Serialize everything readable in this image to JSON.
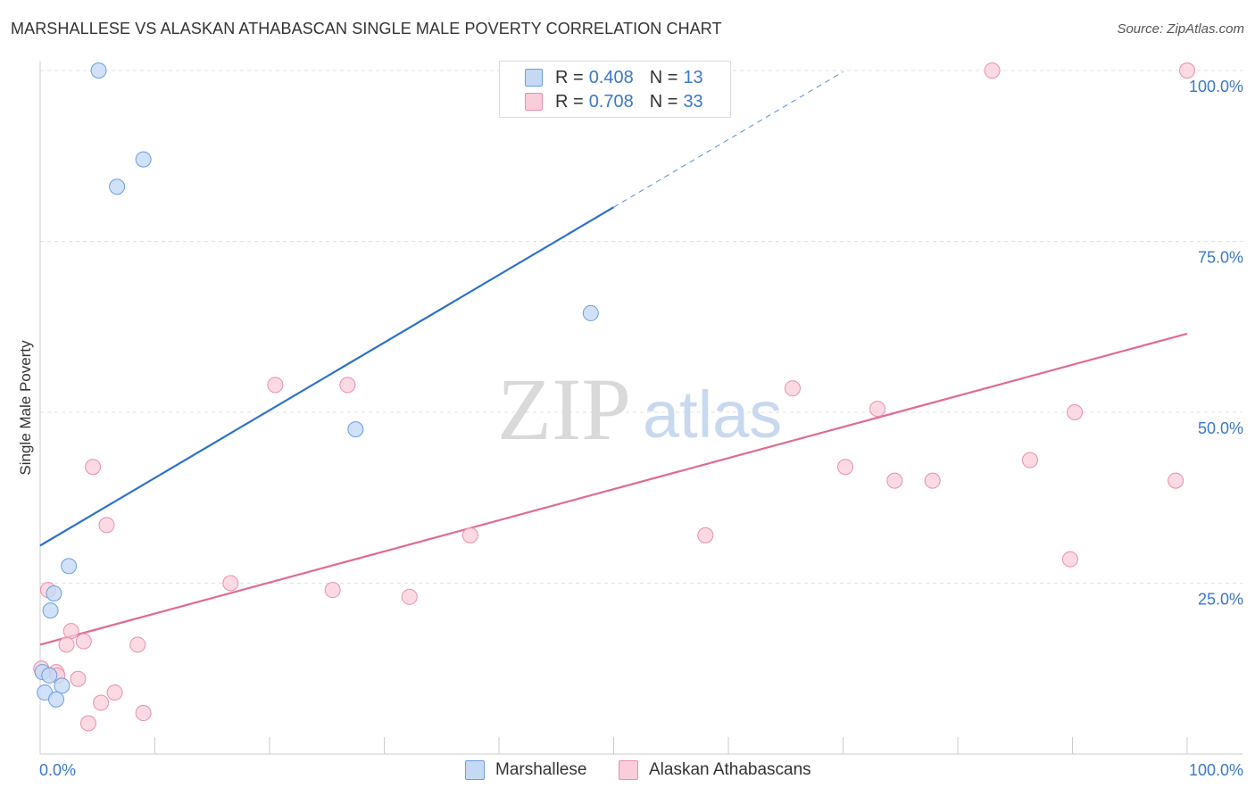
{
  "title": "MARSHALLESE VS ALASKAN ATHABASCAN SINGLE MALE POVERTY CORRELATION CHART",
  "source": "Source: ZipAtlas.com",
  "colors": {
    "blue_fill": "#c5d9f5",
    "blue_stroke": "#6a9ee0",
    "blue_line": "#2d72c9",
    "pink_fill": "#f9cdd9",
    "pink_stroke": "#e98fab",
    "pink_line": "#e06b92",
    "axis_text": "#3a78c9",
    "grid": "#e2e2e2"
  },
  "legend": {
    "r_label": "R =",
    "n_label": "N =",
    "series": [
      {
        "name": "Marshallese",
        "r": "0.408",
        "n": "13"
      },
      {
        "name": "Alaskan Athabascans",
        "r": "0.708",
        "n": "33"
      }
    ]
  },
  "watermark": {
    "zip": "ZIP",
    "atlas": "atlas"
  },
  "chart_data": {
    "type": "scatter",
    "title": "MARSHALLESE VS ALASKAN ATHABASCAN SINGLE MALE POVERTY CORRELATION CHART",
    "xlabel": "",
    "ylabel": "Single Male Poverty",
    "xlim": [
      0,
      100
    ],
    "ylim": [
      0,
      102
    ],
    "x_tick_labels": [
      "0.0%",
      "100.0%"
    ],
    "y_ticks": [
      25,
      50,
      75,
      100
    ],
    "y_tick_labels": [
      "25.0%",
      "50.0%",
      "75.0%",
      "100.0%"
    ],
    "grid": true,
    "legend_position": "top-center",
    "series": [
      {
        "name": "Marshallese",
        "points": [
          [
            5.1,
            100
          ],
          [
            9.0,
            87
          ],
          [
            6.7,
            83
          ],
          [
            48.0,
            64.5
          ],
          [
            27.5,
            47.5
          ],
          [
            2.5,
            27.5
          ],
          [
            1.2,
            23.5
          ],
          [
            0.9,
            21
          ],
          [
            0.2,
            12
          ],
          [
            0.8,
            11.5
          ],
          [
            0.4,
            9
          ],
          [
            1.9,
            10
          ],
          [
            1.4,
            8
          ]
        ],
        "trend": {
          "x": [
            0,
            50
          ],
          "y": [
            30.5,
            80
          ],
          "extended_to": [
            70,
            100
          ]
        }
      },
      {
        "name": "Alaskan Athabascans",
        "points": [
          [
            83,
            100
          ],
          [
            100,
            100
          ],
          [
            20.5,
            54
          ],
          [
            26.8,
            54
          ],
          [
            65.6,
            53.5
          ],
          [
            73,
            50.5
          ],
          [
            90.2,
            50
          ],
          [
            4.6,
            42
          ],
          [
            70.2,
            42
          ],
          [
            86.3,
            43
          ],
          [
            74.5,
            40
          ],
          [
            77.8,
            40
          ],
          [
            99,
            40
          ],
          [
            5.8,
            33.5
          ],
          [
            37.5,
            32
          ],
          [
            58,
            32
          ],
          [
            89.8,
            28.5
          ],
          [
            16.6,
            25
          ],
          [
            25.5,
            24
          ],
          [
            32.2,
            23
          ],
          [
            0.7,
            24
          ],
          [
            2.7,
            18
          ],
          [
            3.8,
            16.5
          ],
          [
            2.3,
            16
          ],
          [
            8.5,
            16
          ],
          [
            1.4,
            12
          ],
          [
            1.5,
            11.5
          ],
          [
            3.3,
            11
          ],
          [
            6.5,
            9
          ],
          [
            5.3,
            7.5
          ],
          [
            9.0,
            6
          ],
          [
            4.2,
            4.5
          ],
          [
            0.1,
            12.5
          ]
        ],
        "trend": {
          "x": [
            0,
            100
          ],
          "y": [
            16,
            61.5
          ]
        }
      }
    ]
  }
}
